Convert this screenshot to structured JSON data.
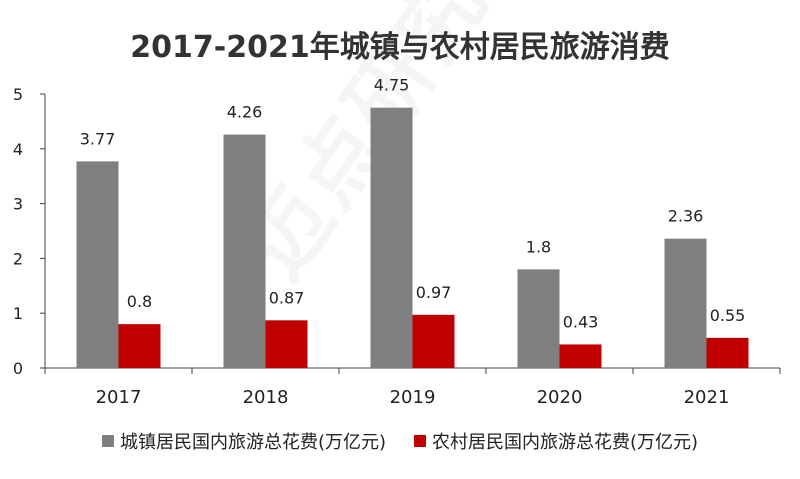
{
  "chart_data": {
    "type": "bar",
    "title": "2017-2021年城镇与农村居民旅游消费",
    "categories": [
      "2017",
      "2018",
      "2019",
      "2020",
      "2021"
    ],
    "series": [
      {
        "name": "城镇居民国内旅游总花费(万亿元)",
        "values": [
          3.77,
          4.26,
          4.75,
          1.8,
          2.36
        ],
        "color": "#7f7f7f"
      },
      {
        "name": "农村居民国内旅游总花费(万亿元)",
        "values": [
          0.8,
          0.87,
          0.97,
          0.43,
          0.55
        ],
        "color": "#c00000"
      }
    ],
    "data_labels": [
      [
        "3.77",
        "4.26",
        "4.75",
        "1.8",
        "2.36"
      ],
      [
        "0.8",
        "0.87",
        "0.97",
        "0.43",
        "0.55"
      ]
    ],
    "yticks": [
      "0",
      "1",
      "2",
      "3",
      "4",
      "5"
    ],
    "ylim": [
      0,
      5
    ],
    "grid": false,
    "legend_position": "bottom",
    "xlabel": "",
    "ylabel": ""
  },
  "watermark": "迈点研究院"
}
